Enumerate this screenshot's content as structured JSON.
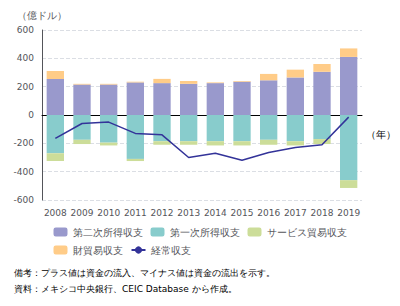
{
  "chart_data": {
    "type": "bar",
    "stacked": true,
    "grid": true,
    "legend": "bottom",
    "xlabel": "（年）",
    "ylabel": "（億ドル）",
    "annotations": [
      "備考：プラス値は資金の流入、マイナス値は資金の流出を示す。",
      "資料：メキシコ中央銀行、CEIC Database から作成。"
    ],
    "categories": [
      "2008",
      "2009",
      "2010",
      "2011",
      "2012",
      "2013",
      "2014",
      "2015",
      "2016",
      "2017",
      "2018",
      "2019"
    ],
    "ylim": [
      -600,
      600
    ],
    "yticks": [
      -600,
      -400,
      -200,
      0,
      200,
      400,
      600
    ],
    "series": [
      {
        "name": "第二次所得収支",
        "type": "bar",
        "color": "#9999cc",
        "values": [
          255,
          215,
          215,
          230,
          225,
          220,
          225,
          235,
          245,
          265,
          305,
          410
        ]
      },
      {
        "name": "第一次所得収支",
        "type": "bar",
        "color": "#88cccc",
        "values": [
          -270,
          -175,
          -195,
          -310,
          -185,
          -185,
          -185,
          -185,
          -175,
          -185,
          -170,
          -460
        ]
      },
      {
        "name": "サービス貿易収支",
        "type": "bar",
        "color": "#ccdd99",
        "values": [
          -55,
          -30,
          -20,
          -15,
          -25,
          -25,
          -30,
          -30,
          -35,
          -30,
          -35,
          -55
        ]
      },
      {
        "name": "財貿易収支",
        "type": "bar",
        "color": "#ffcc88",
        "values": [
          55,
          5,
          5,
          5,
          30,
          20,
          5,
          5,
          45,
          55,
          55,
          60
        ]
      },
      {
        "name": "経常収支",
        "type": "line",
        "color": "#333399",
        "values": [
          -165,
          -60,
          -50,
          -130,
          -140,
          -300,
          -270,
          -320,
          -265,
          -230,
          -210,
          -15
        ]
      }
    ]
  }
}
